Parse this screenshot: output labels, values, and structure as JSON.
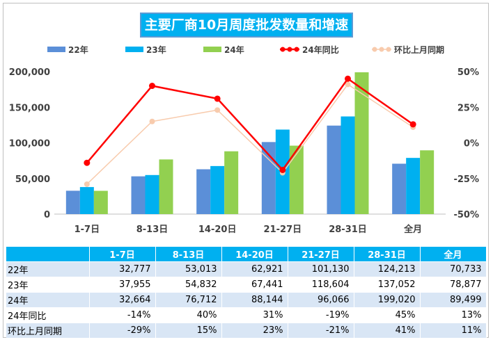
{
  "chart_data": {
    "type": "bar",
    "title": "主要厂商10月周度批发数量和增速",
    "categories": [
      "1-7日",
      "8-13日",
      "14-20日",
      "21-27日",
      "28-31日",
      "全月"
    ],
    "bar_series": [
      {
        "name": "22年",
        "color": "#5b8fd8",
        "values": [
          32777,
          53013,
          62921,
          101130,
          124213,
          70733
        ]
      },
      {
        "name": "23年",
        "color": "#00b0f0",
        "values": [
          37955,
          54832,
          67441,
          118604,
          137052,
          78877
        ]
      },
      {
        "name": "24年",
        "color": "#92d050",
        "values": [
          32664,
          76712,
          88144,
          96066,
          199020,
          89499
        ]
      }
    ],
    "line_series": [
      {
        "name": "24年同比",
        "color": "#ff0000",
        "values": [
          -14,
          40,
          31,
          -19,
          45,
          13
        ],
        "axis": "right"
      },
      {
        "name": "环比上月同期",
        "color": "#f8cbad",
        "values": [
          -29,
          15,
          23,
          -21,
          41,
          11
        ],
        "axis": "right"
      }
    ],
    "y_left": {
      "min": 0,
      "max": 200000,
      "ticks": [
        0,
        50000,
        100000,
        150000,
        200000
      ],
      "tick_labels": [
        "0",
        "50,000",
        "100,000",
        "150,000",
        "200,000"
      ]
    },
    "y_right": {
      "min": -50,
      "max": 50,
      "ticks": [
        -50,
        -25,
        0,
        25,
        50
      ],
      "tick_labels": [
        "-50%",
        "-25%",
        "0%",
        "25%",
        "50%"
      ]
    },
    "legend_position": "top"
  },
  "table": {
    "headers": [
      "",
      "1-7日",
      "8-13日",
      "14-20日",
      "21-27日",
      "28-31日",
      "全月"
    ],
    "rows": [
      {
        "label": "22年",
        "cells": [
          "32,777",
          "53,013",
          "62,921",
          "101,130",
          "124,213",
          "70,733"
        ]
      },
      {
        "label": "23年",
        "cells": [
          "37,955",
          "54,832",
          "67,441",
          "118,604",
          "137,052",
          "78,877"
        ]
      },
      {
        "label": "24年",
        "cells": [
          "32,664",
          "76,712",
          "88,144",
          "96,066",
          "199,020",
          "89,499"
        ]
      },
      {
        "label": "24年同比",
        "cells": [
          "-14%",
          "40%",
          "31%",
          "-19%",
          "45%",
          "13%"
        ]
      },
      {
        "label": "环比上月同期",
        "cells": [
          "-29%",
          "15%",
          "23%",
          "-21%",
          "41%",
          "11%"
        ]
      }
    ]
  }
}
